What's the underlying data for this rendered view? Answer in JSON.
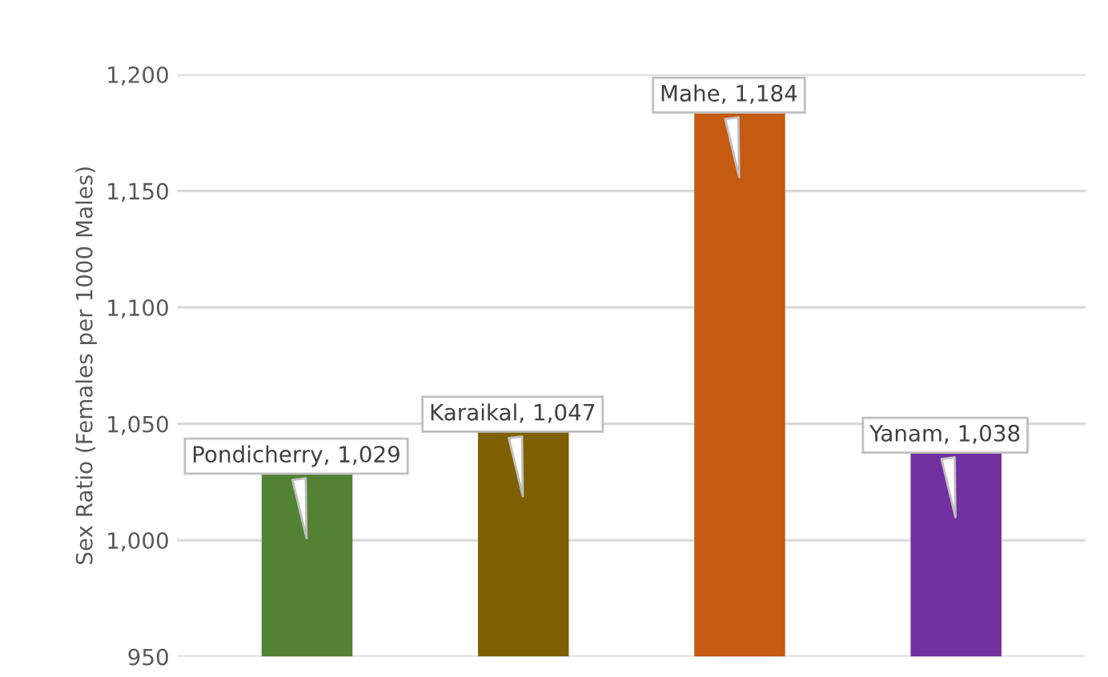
{
  "chart_data": {
    "type": "bar",
    "ylabel": "Sex Ratio (Females per 1000 Males)",
    "categories": [
      null,
      null,
      null,
      null
    ],
    "values": [
      1029,
      1047,
      1184,
      1038
    ],
    "colors": [
      "#548235",
      "#7f6000",
      "#c55a11",
      "#7030a0"
    ],
    "value_labels": [
      "Pondicherry, 1,029",
      "Karaikal, 1,047",
      "Mahe, 1,184",
      "Yanam, 1,038"
    ],
    "ylim": [
      950,
      1200
    ],
    "yticks": [
      {
        "value": 950,
        "label": "950"
      },
      {
        "value": 1000,
        "label": "1,000"
      },
      {
        "value": 1050,
        "label": "1,050"
      },
      {
        "value": 1100,
        "label": "1,100"
      },
      {
        "value": 1150,
        "label": "1,150"
      },
      {
        "value": 1200,
        "label": "1,200"
      }
    ],
    "grid": "y",
    "tick_labels": "y"
  }
}
